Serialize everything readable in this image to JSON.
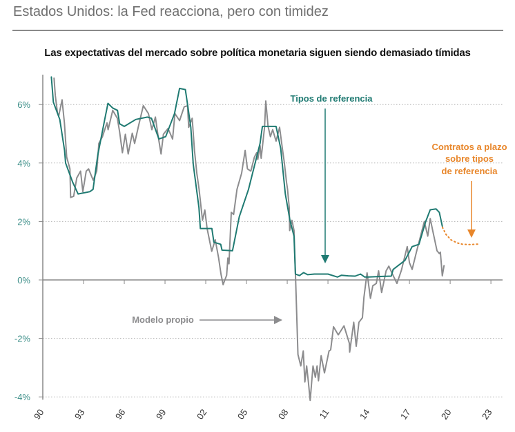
{
  "header": {
    "title": "Estados Unidos: la Fed reacciona, pero con timidez"
  },
  "chart_data": {
    "type": "line",
    "title": "Las expectativas del mercado sobre política monetaria siguen siendo demasiado tímidas",
    "xlabel": "",
    "ylabel": "",
    "xlim": [
      1990,
      2023
    ],
    "ylim": [
      -4,
      7
    ],
    "grid": true,
    "x_ticks": [
      1990,
      1993,
      1996,
      1999,
      2002,
      2005,
      2008,
      2011,
      2014,
      2017,
      2020,
      2023
    ],
    "x_tick_labels": [
      "90",
      "93",
      "96",
      "99",
      "02",
      "05",
      "08",
      "11",
      "14",
      "17",
      "20",
      "23"
    ],
    "y_ticks": [
      6,
      4,
      2,
      0,
      -2,
      -4
    ],
    "y_tick_labels": [
      "6%",
      "4%",
      "2%",
      "0%",
      "-2%",
      "-4%"
    ],
    "colors": {
      "policy": "#1f7a72",
      "model": "#8c8c8e",
      "forward": "#e8862a",
      "ytick": "#3d8f89"
    },
    "annotations": {
      "policy": "Tipos de referencia",
      "model": "Modelo propio",
      "forward_lines": [
        "Contratos a plazo",
        "sobre tipos",
        "de referencia"
      ]
    },
    "series": [
      {
        "name": "Tipos de referencia",
        "x": [
          1990.63,
          1990.78,
          1991.25,
          1991.6,
          1991.68,
          1992.2,
          1992.6,
          1993.46,
          1993.7,
          1994.05,
          1994.56,
          1994.8,
          1995.15,
          1995.5,
          1995.66,
          1996.0,
          1996.85,
          1997.7,
          1998.0,
          1998.55,
          1999.05,
          1999.7,
          2000.07,
          2000.5,
          2000.66,
          2000.9,
          2001.08,
          2001.5,
          2001.6,
          2002.45,
          2002.6,
          2003.1,
          2003.2,
          2003.97,
          2004.47,
          2005.15,
          2006.0,
          2006.17,
          2007.18,
          2007.52,
          2007.86,
          2008.2,
          2008.5,
          2008.6,
          2008.9,
          2009.2,
          2009.5,
          2010.0,
          2011.0,
          2011.7,
          2012.0,
          2012.5,
          2013.0,
          2013.4,
          2013.7,
          2014.0,
          2015.0,
          2015.66,
          2015.8,
          2016.67,
          2017.2,
          2017.7,
          2018.2,
          2018.53,
          2018.96,
          2019.2,
          2019.42
        ],
        "values": [
          6.94,
          6.08,
          5.49,
          4.43,
          4.0,
          3.34,
          2.94,
          3.02,
          3.1,
          4.28,
          5.49,
          6.04,
          5.88,
          5.8,
          5.34,
          5.25,
          5.49,
          5.57,
          5.53,
          4.82,
          4.9,
          5.69,
          6.55,
          6.51,
          6.0,
          5.22,
          3.96,
          2.47,
          1.76,
          1.76,
          1.29,
          1.22,
          1.02,
          1.0,
          2.16,
          3.1,
          4.67,
          5.25,
          5.25,
          4.5,
          2.94,
          2.04,
          1.5,
          0.2,
          0.15,
          0.25,
          0.18,
          0.2,
          0.2,
          0.1,
          0.16,
          0.14,
          0.13,
          0.2,
          0.1,
          0.1,
          0.12,
          0.13,
          0.36,
          0.67,
          1.14,
          1.22,
          2.0,
          2.4,
          2.43,
          2.31,
          1.84
        ]
      },
      {
        "name": "Modelo propio",
        "x": [
          1990.83,
          1990.92,
          1991.08,
          1991.17,
          1991.42,
          1991.59,
          1991.76,
          1992.0,
          1992.05,
          1992.27,
          1992.5,
          1992.78,
          1992.95,
          1993.2,
          1993.37,
          1993.71,
          1993.97,
          1994.13,
          1994.39,
          1994.73,
          1994.81,
          1995.15,
          1995.49,
          1995.66,
          1995.86,
          1996.08,
          1996.29,
          1996.59,
          1996.76,
          1997.02,
          1997.4,
          1997.78,
          1998.03,
          1998.29,
          1998.46,
          1998.71,
          1998.88,
          1999.22,
          1999.56,
          1999.73,
          2000.07,
          2000.41,
          2000.66,
          2000.74,
          2001.0,
          2001.17,
          2001.34,
          2001.51,
          2001.76,
          2001.93,
          2002.1,
          2002.44,
          2002.7,
          2002.95,
          2003.12,
          2003.28,
          2003.54,
          2003.63,
          2003.71,
          2003.88,
          2004.05,
          2004.3,
          2004.64,
          2004.9,
          2005.07,
          2005.32,
          2005.58,
          2005.75,
          2005.83,
          2006.0,
          2006.08,
          2006.33,
          2006.42,
          2006.59,
          2006.76,
          2006.93,
          2007.18,
          2007.44,
          2007.66,
          2007.78,
          2007.95,
          2008.02,
          2008.15,
          2008.18,
          2008.35,
          2008.5,
          2008.62,
          2008.79,
          2008.87,
          2009.0,
          2009.18,
          2009.3,
          2009.43,
          2009.56,
          2009.69,
          2009.9,
          2010.07,
          2010.2,
          2010.3,
          2010.5,
          2010.74,
          2011.08,
          2011.2,
          2011.41,
          2011.76,
          2012.18,
          2012.57,
          2012.6,
          2012.9,
          2013.08,
          2013.28,
          2013.54,
          2013.65,
          2013.88,
          2014.13,
          2014.3,
          2014.56,
          2014.73,
          2014.95,
          2015.28,
          2015.48,
          2015.83,
          2016.08,
          2016.42,
          2016.5,
          2016.84,
          2017.0,
          2017.2,
          2017.54,
          2018.1,
          2018.35,
          2018.53,
          2018.7,
          2019.03,
          2019.2,
          2019.28,
          2019.42,
          2019.55
        ],
        "values": [
          6.9,
          6.31,
          5.72,
          5.6,
          6.16,
          5.37,
          4.2,
          3.8,
          2.82,
          2.86,
          3.49,
          3.72,
          3.02,
          3.72,
          3.8,
          3.41,
          3.72,
          4.67,
          4.9,
          5.37,
          5.14,
          5.8,
          5.53,
          5.06,
          4.35,
          4.98,
          4.31,
          5.02,
          4.67,
          5.21,
          5.96,
          5.69,
          5.14,
          5.57,
          5.02,
          4.31,
          4.98,
          5.18,
          4.82,
          5.69,
          5.45,
          5.92,
          5.96,
          5.22,
          5.53,
          4.43,
          3.65,
          3.1,
          2.04,
          2.39,
          1.76,
          0.98,
          1.37,
          0.75,
          0.2,
          -0.16,
          0.16,
          0.75,
          0.55,
          2.31,
          2.24,
          3.1,
          3.65,
          4.43,
          3.8,
          3.72,
          4.2,
          4.35,
          4.12,
          4.59,
          4.16,
          5.22,
          6.12,
          5.25,
          4.9,
          5.14,
          4.75,
          5.22,
          4.43,
          4.04,
          3.33,
          3.1,
          2.47,
          1.69,
          2.04,
          1.69,
          -0.04,
          -2.55,
          -2.7,
          -2.94,
          -2.43,
          -3.49,
          -2.94,
          -3.49,
          -4.12,
          -2.94,
          -3.33,
          -2.94,
          -3.45,
          -2.59,
          -3.18,
          -2.43,
          -2.39,
          -1.6,
          -1.88,
          -1.57,
          -2.16,
          -2.47,
          -1.45,
          -2.27,
          -1.45,
          -1.29,
          -0.59,
          0.24,
          -0.63,
          -0.2,
          -0.12,
          0.31,
          -0.43,
          0.31,
          0.47,
          0.12,
          -0.12,
          0.35,
          0.51,
          1.14,
          0.59,
          0.36,
          1.0,
          2.0,
          1.5,
          2.1,
          1.72,
          1.0,
          0.9,
          0.95,
          0.14,
          0.49
        ]
      },
      {
        "name": "Contratos a plazo sobre tipos de referencia",
        "style": "dotted",
        "x": [
          2019.43,
          2019.7,
          2020.06,
          2020.5,
          2020.9,
          2021.5,
          2022.2
        ],
        "values": [
          1.8,
          1.55,
          1.37,
          1.27,
          1.22,
          1.21,
          1.23
        ]
      }
    ]
  }
}
